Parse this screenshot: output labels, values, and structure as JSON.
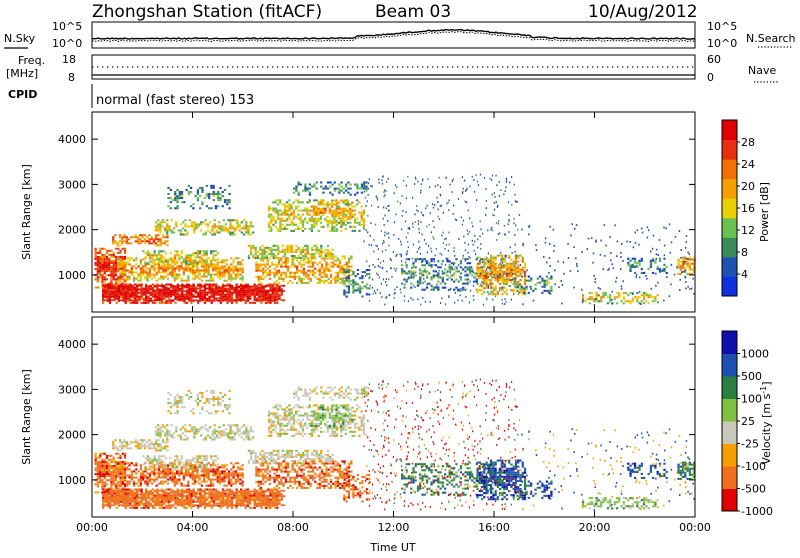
{
  "header": {
    "station": "Zhongshan Station (fitACF)",
    "beam": "Beam 03",
    "date": "10/Aug/2012"
  },
  "noise_panel": {
    "left_label": "N.Sky",
    "right_label": "N.Search",
    "left_ticks": [
      "10^5",
      "10^0"
    ],
    "right_ticks": [
      "10^5",
      "10^0"
    ]
  },
  "freq_panel": {
    "left_label_1": "Freq.",
    "left_label_2": "[MHz]",
    "left_ticks": [
      "18",
      "8"
    ],
    "right_label": "Nave",
    "right_ticks": [
      "60",
      "0"
    ],
    "cpid_label": "CPID",
    "cpid_text": "normal (fast stereo) 153"
  },
  "x_axis": {
    "label": "Time UT",
    "ticks": [
      "00:00",
      "04:00",
      "08:00",
      "12:00",
      "16:00",
      "20:00",
      "00:00"
    ]
  },
  "colors": {
    "power": [
      "#1030e0",
      "#2050b0",
      "#3a8a5a",
      "#6cc050",
      "#e6d000",
      "#f5a000",
      "#f07000",
      "#e63010",
      "#e00000"
    ],
    "velocity": [
      "#e00000",
      "#f07020",
      "#f5a000",
      "#c8c8b8",
      "#80c040",
      "#2a8040",
      "#1f4fb0",
      "#1010b0"
    ]
  },
  "chart_data": [
    {
      "type": "heatmap",
      "name": "power",
      "ylabel": "Slant Range [km]",
      "yticks": [
        "4000",
        "3000",
        "2000",
        "1000"
      ],
      "ylim": [
        180,
        4600
      ],
      "xlim": [
        "00:00",
        "24:00"
      ],
      "colorbar_label": "Power [dB]",
      "colorbar_ticks": [
        "28",
        "24",
        "20",
        "16",
        "12",
        "8",
        "4"
      ],
      "colorbar_range": [
        0,
        32
      ]
    },
    {
      "type": "heatmap",
      "name": "velocity",
      "ylabel": "Slant Range [km]",
      "yticks": [
        "4000",
        "3000",
        "2000",
        "1000"
      ],
      "ylim": [
        180,
        4600
      ],
      "xlim": [
        "00:00",
        "24:00"
      ],
      "colorbar_label": "Velocity [m s^-1]",
      "colorbar_ticks": [
        "1000",
        "500",
        "100",
        "25",
        "-25",
        "-100",
        "-500",
        "-1000"
      ],
      "colorbar_range": [
        -1000,
        1000
      ]
    }
  ]
}
